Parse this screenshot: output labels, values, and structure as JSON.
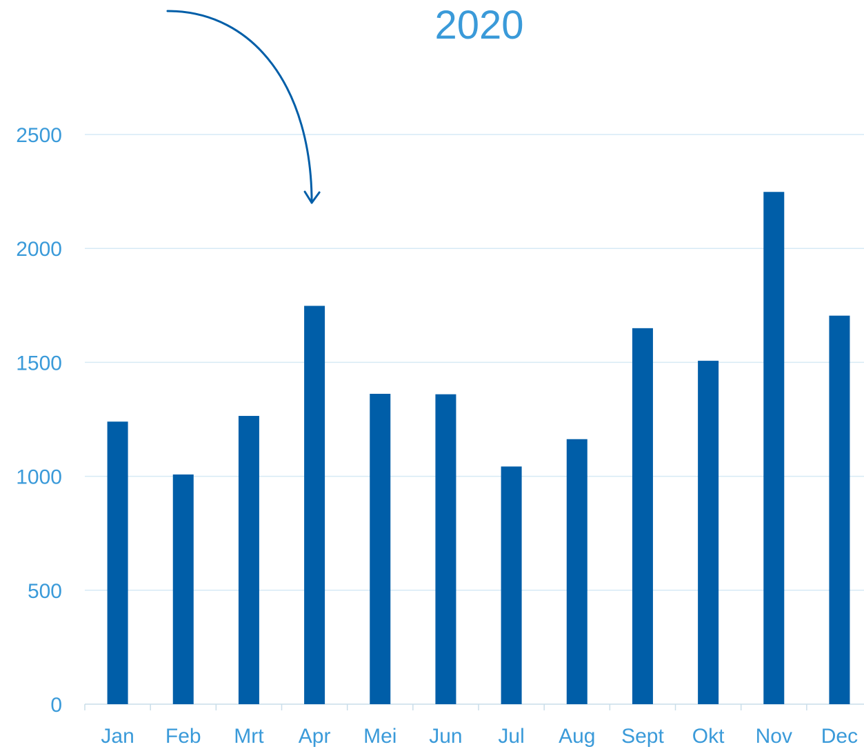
{
  "chart_data": {
    "type": "bar",
    "title": "2020",
    "xlabel": "",
    "ylabel": "",
    "categories": [
      "Jan",
      "Feb",
      "Mrt",
      "Apr",
      "Mei",
      "Jun",
      "Jul",
      "Aug",
      "Sept",
      "Okt",
      "Nov",
      "Dec"
    ],
    "values": [
      1240,
      1008,
      1265,
      1748,
      1362,
      1360,
      1043,
      1163,
      1650,
      1507,
      2248,
      1705
    ],
    "ylim": [
      0,
      2500
    ],
    "yticks": [
      "0",
      "500",
      "1000",
      "1500",
      "2000",
      "2500"
    ],
    "grid": true,
    "annotation": {
      "type": "arrow",
      "points_to": "Apr"
    },
    "colors": {
      "bar": "#005EA8",
      "text": "#3A9AD9",
      "grid": "#D6EAF5",
      "axis": "#C9DDE9",
      "arrow": "#005EA8"
    }
  }
}
